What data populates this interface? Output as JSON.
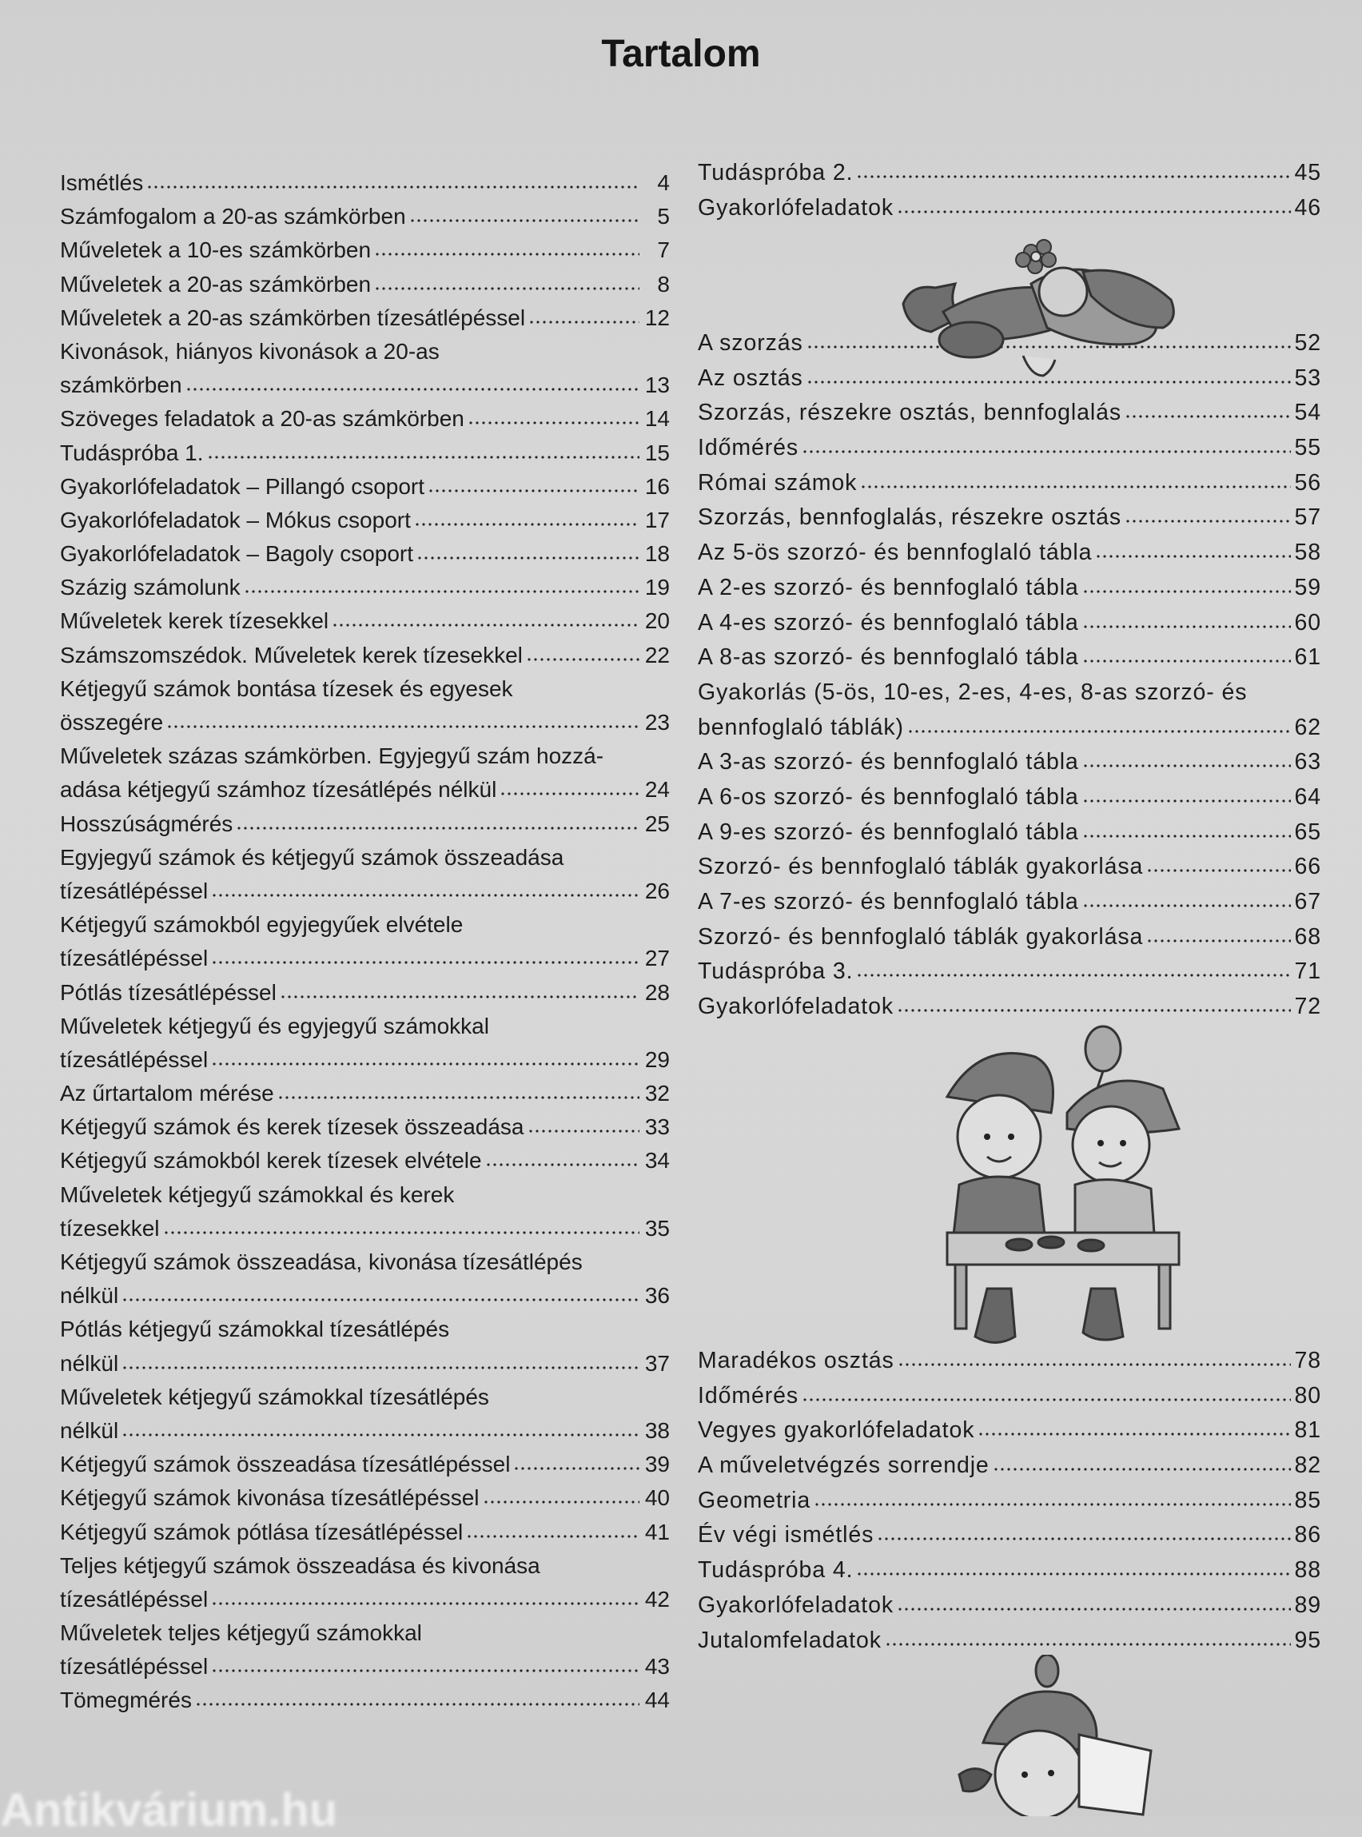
{
  "title": "Tartalom",
  "left_entries": [
    {
      "lines": [
        "Ismétlés"
      ],
      "page": "4"
    },
    {
      "lines": [
        "Számfogalom a 20-as számkörben"
      ],
      "page": "5"
    },
    {
      "lines": [
        "Műveletek a 10-es számkörben"
      ],
      "page": "7"
    },
    {
      "lines": [
        "Műveletek a 20-as számkörben"
      ],
      "page": "8"
    },
    {
      "lines": [
        "Műveletek a 20-as számkörben tízesátlépéssel"
      ],
      "page": "12"
    },
    {
      "lines": [
        "Kivonások, hiányos kivonások a 20-as",
        "számkörben"
      ],
      "page": "13"
    },
    {
      "lines": [
        "Szöveges feladatok a 20-as számkörben"
      ],
      "page": "14"
    },
    {
      "lines": [
        "Tudáspróba 1."
      ],
      "page": "15"
    },
    {
      "lines": [
        "Gyakorlófeladatok – Pillangó csoport"
      ],
      "page": "16"
    },
    {
      "lines": [
        "Gyakorlófeladatok – Mókus csoport"
      ],
      "page": "17"
    },
    {
      "lines": [
        "Gyakorlófeladatok – Bagoly csoport"
      ],
      "page": "18"
    },
    {
      "lines": [
        "Százig számolunk"
      ],
      "page": "19"
    },
    {
      "lines": [
        "Műveletek kerek tízesekkel"
      ],
      "page": "20"
    },
    {
      "lines": [
        "Számszomszédok. Műveletek kerek tízesekkel"
      ],
      "page": "22"
    },
    {
      "lines": [
        "Kétjegyű számok bontása tízesek és egyesek",
        "összegére"
      ],
      "page": "23"
    },
    {
      "lines": [
        "Műveletek százas számkörben. Egyjegyű szám hozzá-",
        "adása kétjegyű számhoz tízesátlépés nélkül"
      ],
      "page": "24"
    },
    {
      "lines": [
        "Hosszúságmérés"
      ],
      "page": "25"
    },
    {
      "lines": [
        "Egyjegyű számok és kétjegyű számok összeadása",
        "tízesátlépéssel"
      ],
      "page": "26"
    },
    {
      "lines": [
        "Kétjegyű számokból egyjegyűek elvétele",
        "tízesátlépéssel"
      ],
      "page": "27"
    },
    {
      "lines": [
        "Pótlás tízesátlépéssel"
      ],
      "page": "28"
    },
    {
      "lines": [
        "Műveletek kétjegyű és egyjegyű számokkal",
        "tízesátlépéssel"
      ],
      "page": "29"
    },
    {
      "lines": [
        "Az űrtartalom mérése"
      ],
      "page": "32"
    },
    {
      "lines": [
        "Kétjegyű számok és kerek tízesek összeadása"
      ],
      "page": "33"
    },
    {
      "lines": [
        "Kétjegyű számokból kerek tízesek elvétele"
      ],
      "page": "34"
    },
    {
      "lines": [
        "Műveletek kétjegyű számokkal és kerek",
        "tízesekkel"
      ],
      "page": "35"
    },
    {
      "lines": [
        "Kétjegyű számok összeadása, kivonása tízesátlépés",
        "nélkül"
      ],
      "page": "36"
    },
    {
      "lines": [
        "Pótlás kétjegyű számokkal tízesátlépés",
        "nélkül"
      ],
      "page": "37"
    },
    {
      "lines": [
        "Műveletek kétjegyű számokkal tízesátlépés",
        "nélkül"
      ],
      "page": "38"
    },
    {
      "lines": [
        "Kétjegyű számok összeadása tízesátlépéssel"
      ],
      "page": "39"
    },
    {
      "lines": [
        "Kétjegyű számok kivonása tízesátlépéssel"
      ],
      "page": "40"
    },
    {
      "lines": [
        "Kétjegyű számok pótlása tízesátlépéssel"
      ],
      "page": "41"
    },
    {
      "lines": [
        "Teljes kétjegyű számok összeadása és kivonása",
        "tízesátlépéssel"
      ],
      "page": "42"
    },
    {
      "lines": [
        "Műveletek teljes kétjegyű számokkal",
        "tízesátlépéssel"
      ],
      "page": "43"
    },
    {
      "lines": [
        "Tömegmérés"
      ],
      "page": "44"
    }
  ],
  "right_block_1": [
    {
      "lines": [
        "Tudáspróba 2."
      ],
      "page": "45"
    },
    {
      "lines": [
        "Gyakorlófeladatok"
      ],
      "page": "46"
    }
  ],
  "right_block_2": [
    {
      "lines": [
        "A szorzás"
      ],
      "page": "52"
    },
    {
      "lines": [
        "Az osztás"
      ],
      "page": "53"
    },
    {
      "lines": [
        "Szorzás, részekre osztás, bennfoglalás"
      ],
      "page": "54"
    },
    {
      "lines": [
        "Időmérés"
      ],
      "page": "55"
    },
    {
      "lines": [
        "Római számok"
      ],
      "page": "56"
    },
    {
      "lines": [
        "Szorzás, bennfoglalás, részekre osztás"
      ],
      "page": "57"
    },
    {
      "lines": [
        "Az 5-ös szorzó- és bennfoglaló tábla"
      ],
      "page": "58"
    },
    {
      "lines": [
        "A 2-es szorzó- és bennfoglaló tábla"
      ],
      "page": "59"
    },
    {
      "lines": [
        "A 4-es szorzó- és bennfoglaló tábla"
      ],
      "page": "60"
    },
    {
      "lines": [
        "A 8-as szorzó- és bennfoglaló tábla"
      ],
      "page": "61"
    },
    {
      "lines": [
        "Gyakorlás (5-ös, 10-es, 2-es, 4-es, 8-as szorzó- és",
        "bennfoglaló táblák)"
      ],
      "page": "62"
    },
    {
      "lines": [
        "A 3-as szorzó- és bennfoglaló tábla"
      ],
      "page": "63"
    },
    {
      "lines": [
        "A 6-os szorzó- és bennfoglaló tábla"
      ],
      "page": "64"
    },
    {
      "lines": [
        "A 9-es szorzó- és bennfoglaló tábla"
      ],
      "page": "65"
    },
    {
      "lines": [
        "Szorzó- és bennfoglaló táblák gyakorlása"
      ],
      "page": "66"
    },
    {
      "lines": [
        "A 7-es szorzó- és bennfoglaló tábla"
      ],
      "page": "67"
    },
    {
      "lines": [
        "Szorzó- és bennfoglaló táblák gyakorlása"
      ],
      "page": "68"
    },
    {
      "lines": [
        "Tudáspróba 3."
      ],
      "page": "71"
    },
    {
      "lines": [
        "Gyakorlófeladatok"
      ],
      "page": "72"
    }
  ],
  "right_block_3": [
    {
      "lines": [
        "Maradékos osztás"
      ],
      "page": "78"
    },
    {
      "lines": [
        "Időmérés"
      ],
      "page": "80"
    },
    {
      "lines": [
        "Vegyes gyakorlófeladatok"
      ],
      "page": "81"
    },
    {
      "lines": [
        "A műveletvégzés sorrendje"
      ],
      "page": "82"
    },
    {
      "lines": [
        "Geometria"
      ],
      "page": "85"
    },
    {
      "lines": [
        "Év végi ismétlés"
      ],
      "page": "86"
    },
    {
      "lines": [
        "Tudáspróba 4."
      ],
      "page": "88"
    },
    {
      "lines": [
        "Gyakorlófeladatok"
      ],
      "page": "89"
    },
    {
      "lines": [
        "Jutalomfeladatok"
      ],
      "page": "95"
    }
  ],
  "illustrations": [
    "sleeping-gnome",
    "two-gnomes-at-table",
    "gnome-with-book"
  ],
  "watermark": "Antikvárium.hu"
}
